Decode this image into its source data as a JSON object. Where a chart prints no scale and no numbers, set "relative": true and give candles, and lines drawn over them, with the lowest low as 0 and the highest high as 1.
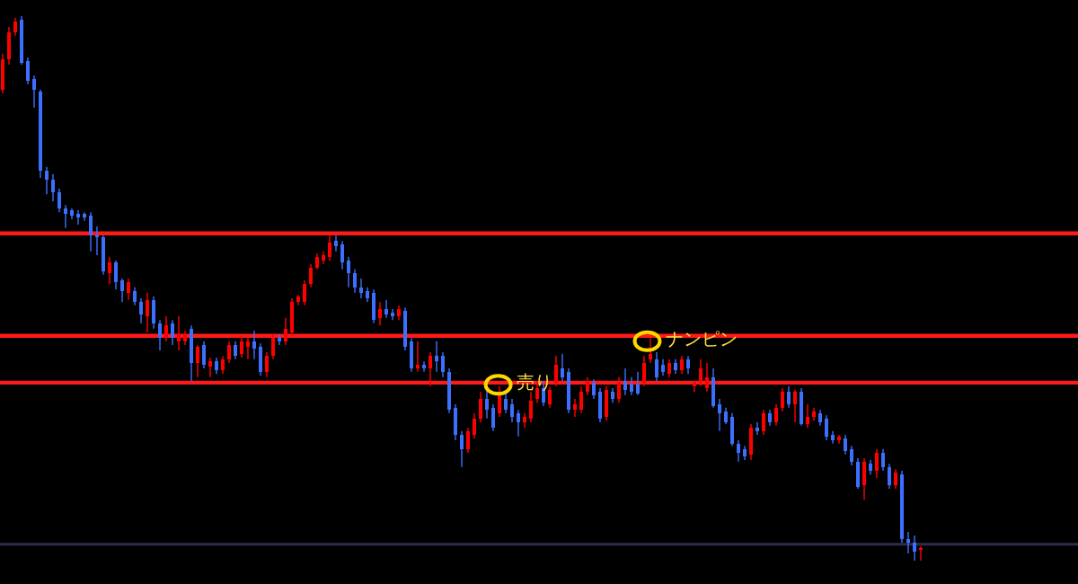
{
  "chart_data": {
    "type": "candlestick",
    "relative": true,
    "categories": [
      null,
      null,
      null,
      null,
      null,
      null,
      null,
      null,
      null,
      null,
      null,
      null,
      null,
      null,
      null,
      null,
      null,
      null,
      null,
      null,
      null,
      null,
      null,
      null,
      null,
      null,
      null,
      null,
      null,
      null,
      null,
      null,
      null,
      null,
      null,
      null,
      null,
      null,
      null,
      null,
      null,
      null,
      null,
      null,
      null,
      null,
      null,
      null,
      null,
      null,
      null,
      null,
      null,
      null,
      null,
      null,
      null,
      null,
      null,
      null,
      null,
      null,
      null,
      null,
      null,
      null,
      null,
      null,
      null,
      null,
      null,
      null,
      null,
      null,
      null,
      null,
      null,
      null,
      null,
      null,
      null,
      null,
      null,
      null,
      null,
      null,
      null,
      null,
      null,
      null,
      null,
      null,
      null,
      null,
      null,
      null,
      null,
      null,
      null,
      null,
      null,
      null,
      null,
      null,
      null,
      null,
      null,
      null,
      null,
      null,
      null,
      null,
      null,
      null,
      null,
      null,
      null,
      null,
      null,
      null,
      null,
      null,
      null,
      null,
      null,
      null,
      null,
      null,
      null,
      null,
      null,
      null,
      null,
      null,
      null,
      null,
      null,
      null,
      null,
      null,
      null,
      null,
      null,
      null,
      null,
      null,
      null
    ],
    "ohlc": [
      [
        0.865,
        0.931,
        0.858,
        0.921
      ],
      [
        0.921,
        0.98,
        0.911,
        0.97
      ],
      [
        0.97,
        0.997,
        0.964,
        0.99
      ],
      [
        0.993,
        1.0,
        0.911,
        0.914
      ],
      [
        0.917,
        0.924,
        0.875,
        0.881
      ],
      [
        0.884,
        0.891,
        0.832,
        0.865
      ],
      [
        0.861,
        0.865,
        0.703,
        0.716
      ],
      [
        0.716,
        0.723,
        0.673,
        0.7
      ],
      [
        0.7,
        0.71,
        0.66,
        0.677
      ],
      [
        0.677,
        0.683,
        0.64,
        0.647
      ],
      [
        0.647,
        0.653,
        0.611,
        0.637
      ],
      [
        0.644,
        0.647,
        0.627,
        0.634
      ],
      [
        0.637,
        0.644,
        0.617,
        0.63
      ],
      [
        0.637,
        0.64,
        0.624,
        0.63
      ],
      [
        0.634,
        0.64,
        0.568,
        0.597
      ],
      [
        0.597,
        0.614,
        0.561,
        0.594
      ],
      [
        0.594,
        0.597,
        0.525,
        0.531
      ],
      [
        0.528,
        0.558,
        0.508,
        0.548
      ],
      [
        0.548,
        0.551,
        0.498,
        0.512
      ],
      [
        0.515,
        0.518,
        0.475,
        0.495
      ],
      [
        0.492,
        0.518,
        0.479,
        0.512
      ],
      [
        0.495,
        0.502,
        0.469,
        0.475
      ],
      [
        0.475,
        0.482,
        0.436,
        0.452
      ],
      [
        0.449,
        0.492,
        0.419,
        0.479
      ],
      [
        0.479,
        0.485,
        0.426,
        0.436
      ],
      [
        0.436,
        0.442,
        0.386,
        0.409
      ],
      [
        0.409,
        0.449,
        0.403,
        0.432
      ],
      [
        0.436,
        0.442,
        0.396,
        0.409
      ],
      [
        0.403,
        0.449,
        0.386,
        0.416
      ],
      [
        0.403,
        0.422,
        0.396,
        0.416
      ],
      [
        0.426,
        0.432,
        0.33,
        0.363
      ],
      [
        0.363,
        0.396,
        0.337,
        0.393
      ],
      [
        0.396,
        0.403,
        0.353,
        0.36
      ],
      [
        0.356,
        0.373,
        0.337,
        0.366
      ],
      [
        0.366,
        0.373,
        0.343,
        0.35
      ],
      [
        0.35,
        0.376,
        0.343,
        0.37
      ],
      [
        0.37,
        0.403,
        0.363,
        0.396
      ],
      [
        0.396,
        0.403,
        0.37,
        0.376
      ],
      [
        0.38,
        0.413,
        0.373,
        0.403
      ],
      [
        0.393,
        0.409,
        0.37,
        0.403
      ],
      [
        0.403,
        0.422,
        0.37,
        0.389
      ],
      [
        0.393,
        0.399,
        0.34,
        0.347
      ],
      [
        0.347,
        0.383,
        0.337,
        0.376
      ],
      [
        0.376,
        0.416,
        0.37,
        0.409
      ],
      [
        0.409,
        0.416,
        0.396,
        0.403
      ],
      [
        0.403,
        0.446,
        0.396,
        0.426
      ],
      [
        0.419,
        0.482,
        0.413,
        0.475
      ],
      [
        0.475,
        0.488,
        0.469,
        0.485
      ],
      [
        0.475,
        0.515,
        0.469,
        0.508
      ],
      [
        0.508,
        0.545,
        0.502,
        0.538
      ],
      [
        0.538,
        0.564,
        0.535,
        0.558
      ],
      [
        0.551,
        0.568,
        0.545,
        0.561
      ],
      [
        0.558,
        0.597,
        0.551,
        0.584
      ],
      [
        0.587,
        0.597,
        0.568,
        0.578
      ],
      [
        0.581,
        0.587,
        0.535,
        0.548
      ],
      [
        0.551,
        0.558,
        0.502,
        0.528
      ],
      [
        0.528,
        0.535,
        0.492,
        0.502
      ],
      [
        0.502,
        0.518,
        0.482,
        0.492
      ],
      [
        0.495,
        0.502,
        0.475,
        0.482
      ],
      [
        0.492,
        0.498,
        0.436,
        0.442
      ],
      [
        0.446,
        0.475,
        0.432,
        0.462
      ],
      [
        0.462,
        0.479,
        0.446,
        0.452
      ],
      [
        0.455,
        0.462,
        0.442,
        0.449
      ],
      [
        0.449,
        0.469,
        0.442,
        0.462
      ],
      [
        0.459,
        0.465,
        0.386,
        0.393
      ],
      [
        0.403,
        0.409,
        0.347,
        0.353
      ],
      [
        0.353,
        0.403,
        0.347,
        0.36
      ],
      [
        0.36,
        0.366,
        0.347,
        0.353
      ],
      [
        0.353,
        0.383,
        0.32,
        0.376
      ],
      [
        0.376,
        0.403,
        0.347,
        0.366
      ],
      [
        0.376,
        0.383,
        0.337,
        0.347
      ],
      [
        0.347,
        0.353,
        0.271,
        0.277
      ],
      [
        0.281,
        0.287,
        0.221,
        0.231
      ],
      [
        0.231,
        0.238,
        0.172,
        0.205
      ],
      [
        0.205,
        0.244,
        0.198,
        0.238
      ],
      [
        0.231,
        0.271,
        0.224,
        0.261
      ],
      [
        0.261,
        0.31,
        0.254,
        0.297
      ],
      [
        0.297,
        0.32,
        0.261,
        0.277
      ],
      [
        0.281,
        0.287,
        0.238,
        0.244
      ],
      [
        0.271,
        0.32,
        0.264,
        0.304
      ],
      [
        0.297,
        0.31,
        0.271,
        0.277
      ],
      [
        0.287,
        0.297,
        0.254,
        0.264
      ],
      [
        0.271,
        0.277,
        0.228,
        0.254
      ],
      [
        0.254,
        0.271,
        0.244,
        0.264
      ],
      [
        0.261,
        0.31,
        0.254,
        0.294
      ],
      [
        0.297,
        0.33,
        0.29,
        0.317
      ],
      [
        0.317,
        0.33,
        0.284,
        0.29
      ],
      [
        0.287,
        0.32,
        0.281,
        0.314
      ],
      [
        0.327,
        0.376,
        0.32,
        0.36
      ],
      [
        0.353,
        0.38,
        0.33,
        0.337
      ],
      [
        0.347,
        0.353,
        0.271,
        0.277
      ],
      [
        0.277,
        0.297,
        0.264,
        0.287
      ],
      [
        0.277,
        0.32,
        0.271,
        0.31
      ],
      [
        0.31,
        0.337,
        0.304,
        0.33
      ],
      [
        0.327,
        0.333,
        0.297,
        0.304
      ],
      [
        0.31,
        0.317,
        0.254,
        0.261
      ],
      [
        0.264,
        0.32,
        0.257,
        0.314
      ],
      [
        0.31,
        0.317,
        0.29,
        0.297
      ],
      [
        0.297,
        0.337,
        0.29,
        0.327
      ],
      [
        0.33,
        0.353,
        0.304,
        0.314
      ],
      [
        0.323,
        0.337,
        0.304,
        0.31
      ],
      [
        0.323,
        0.347,
        0.304,
        0.307
      ],
      [
        0.327,
        0.376,
        0.32,
        0.363
      ],
      [
        0.37,
        0.409,
        0.363,
        0.38
      ],
      [
        0.37,
        0.383,
        0.33,
        0.337
      ],
      [
        0.36,
        0.37,
        0.34,
        0.347
      ],
      [
        0.343,
        0.37,
        0.337,
        0.363
      ],
      [
        0.363,
        0.37,
        0.343,
        0.35
      ],
      [
        0.35,
        0.376,
        0.343,
        0.37
      ],
      [
        0.37,
        0.376,
        0.343,
        0.353
      ],
      [
        0.32,
        0.33,
        0.31,
        0.327
      ],
      [
        0.327,
        0.37,
        0.32,
        0.353
      ],
      [
        0.317,
        0.363,
        0.31,
        0.337
      ],
      [
        0.337,
        0.353,
        0.281,
        0.284
      ],
      [
        0.287,
        0.297,
        0.238,
        0.271
      ],
      [
        0.274,
        0.281,
        0.251,
        0.254
      ],
      [
        0.264,
        0.271,
        0.211,
        0.215
      ],
      [
        0.215,
        0.221,
        0.182,
        0.198
      ],
      [
        0.205,
        0.211,
        0.185,
        0.191
      ],
      [
        0.195,
        0.251,
        0.185,
        0.244
      ],
      [
        0.244,
        0.254,
        0.231,
        0.238
      ],
      [
        0.238,
        0.277,
        0.231,
        0.271
      ],
      [
        0.271,
        0.277,
        0.248,
        0.254
      ],
      [
        0.254,
        0.287,
        0.248,
        0.281
      ],
      [
        0.281,
        0.317,
        0.274,
        0.31
      ],
      [
        0.31,
        0.32,
        0.281,
        0.287
      ],
      [
        0.287,
        0.314,
        0.254,
        0.31
      ],
      [
        0.31,
        0.317,
        0.248,
        0.251
      ],
      [
        0.251,
        0.287,
        0.244,
        0.264
      ],
      [
        0.264,
        0.281,
        0.257,
        0.274
      ],
      [
        0.271,
        0.277,
        0.248,
        0.254
      ],
      [
        0.261,
        0.267,
        0.221,
        0.228
      ],
      [
        0.231,
        0.238,
        0.215,
        0.221
      ],
      [
        0.221,
        0.231,
        0.215,
        0.228
      ],
      [
        0.224,
        0.231,
        0.195,
        0.201
      ],
      [
        0.205,
        0.211,
        0.175,
        0.182
      ],
      [
        0.182,
        0.188,
        0.132,
        0.135
      ],
      [
        0.139,
        0.188,
        0.112,
        0.182
      ],
      [
        0.178,
        0.185,
        0.158,
        0.165
      ],
      [
        0.165,
        0.205,
        0.152,
        0.198
      ],
      [
        0.198,
        0.205,
        0.165,
        0.172
      ],
      [
        0.172,
        0.178,
        0.132,
        0.139
      ],
      [
        0.139,
        0.168,
        0.132,
        0.162
      ],
      [
        0.158,
        0.165,
        0.033,
        0.04
      ],
      [
        0.04,
        0.053,
        0.013,
        0.033
      ],
      [
        0.033,
        0.046,
        0.0,
        0.017
      ],
      [
        0.02,
        0.026,
        0.0,
        0.023
      ]
    ],
    "colors": [
      "#ff0000",
      "#ff0000",
      "#ff0000",
      "#3d6fff",
      "#3d6fff",
      "#3d6fff",
      "#3d6fff",
      "#3d6fff",
      "#3d6fff",
      "#3d6fff",
      "#3d6fff",
      "#3d6fff",
      "#3d6fff",
      "#3d6fff",
      "#3d6fff",
      "#3d6fff",
      "#3d6fff",
      "#ff0000",
      "#3d6fff",
      "#3d6fff",
      "#ff0000",
      "#3d6fff",
      "#3d6fff",
      "#ff0000",
      "#3d6fff",
      "#3d6fff",
      "#ff0000",
      "#3d6fff",
      "#ff0000",
      "#ff0000",
      "#3d6fff",
      "#ff0000",
      "#3d6fff",
      "#ff0000",
      "#3d6fff",
      "#ff0000",
      "#ff0000",
      "#3d6fff",
      "#ff0000",
      "#ff0000",
      "#3d6fff",
      "#3d6fff",
      "#ff0000",
      "#ff0000",
      "#3d6fff",
      "#ff0000",
      "#ff0000",
      "#ff0000",
      "#ff0000",
      "#ff0000",
      "#ff0000",
      "#ff0000",
      "#ff0000",
      "#3d6fff",
      "#3d6fff",
      "#3d6fff",
      "#3d6fff",
      "#3d6fff",
      "#3d6fff",
      "#3d6fff",
      "#ff0000",
      "#3d6fff",
      "#3d6fff",
      "#ff0000",
      "#3d6fff",
      "#3d6fff",
      "#ff0000",
      "#3d6fff",
      "#ff0000",
      "#3d6fff",
      "#3d6fff",
      "#3d6fff",
      "#3d6fff",
      "#3d6fff",
      "#ff0000",
      "#ff0000",
      "#ff0000",
      "#3d6fff",
      "#3d6fff",
      "#ff0000",
      "#3d6fff",
      "#3d6fff",
      "#3d6fff",
      "#ff0000",
      "#ff0000",
      "#ff0000",
      "#3d6fff",
      "#ff0000",
      "#ff0000",
      "#3d6fff",
      "#3d6fff",
      "#ff0000",
      "#ff0000",
      "#ff0000",
      "#3d6fff",
      "#3d6fff",
      "#ff0000",
      "#3d6fff",
      "#ff0000",
      "#3d6fff",
      "#3d6fff",
      "#3d6fff",
      "#ff0000",
      "#ff0000",
      "#3d6fff",
      "#3d6fff",
      "#ff0000",
      "#3d6fff",
      "#ff0000",
      "#3d6fff",
      "#ff0000",
      "#ff0000",
      "#ff0000",
      "#3d6fff",
      "#3d6fff",
      "#3d6fff",
      "#3d6fff",
      "#3d6fff",
      "#3d6fff",
      "#ff0000",
      "#3d6fff",
      "#ff0000",
      "#3d6fff",
      "#ff0000",
      "#ff0000",
      "#3d6fff",
      "#ff0000",
      "#3d6fff",
      "#ff0000",
      "#ff0000",
      "#3d6fff",
      "#3d6fff",
      "#3d6fff",
      "#ff0000",
      "#3d6fff",
      "#3d6fff",
      "#3d6fff",
      "#ff0000",
      "#3d6fff",
      "#ff0000",
      "#3d6fff",
      "#3d6fff",
      "#ff0000",
      "#3d6fff",
      "#3d6fff",
      "#3d6fff",
      "#ff0000"
    ],
    "ref_lines": [
      {
        "axis": "y",
        "value": 0.601,
        "color": "#ff1a1a"
      },
      {
        "axis": "y",
        "value": 0.413,
        "color": "#ff1a1a"
      },
      {
        "axis": "y",
        "value": 0.327,
        "color": "#ff1a1a"
      },
      {
        "axis": "y",
        "value": 0.03,
        "color": "#2c2c4c"
      }
    ],
    "annotations": [
      {
        "text": "売り",
        "y": 0.323
      },
      {
        "text": "ナンピン",
        "y": 0.403
      }
    ]
  }
}
